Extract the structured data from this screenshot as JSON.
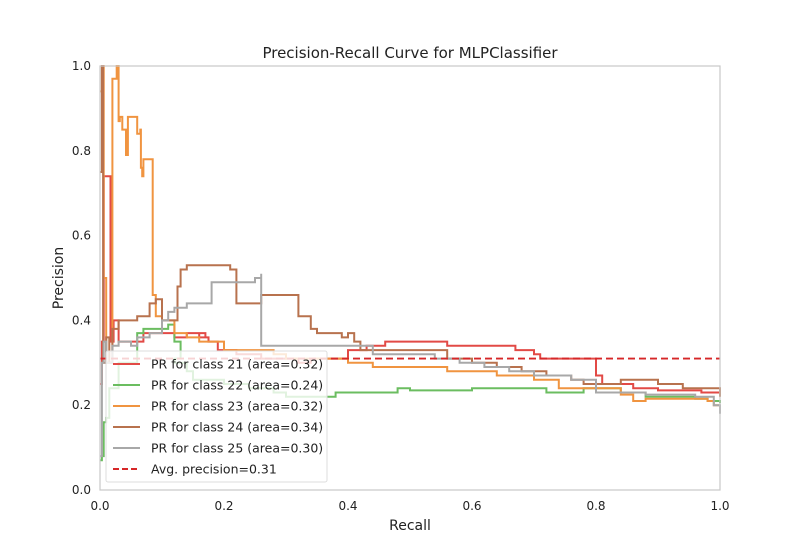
{
  "chart_data": {
    "type": "line",
    "title": "Precision-Recall Curve for MLPClassifier",
    "xlabel": "Recall",
    "ylabel": "Precision",
    "xlim": [
      0,
      1
    ],
    "ylim": [
      0,
      1
    ],
    "xticks": [
      "0.0",
      "0.2",
      "0.4",
      "0.6",
      "0.8",
      "1.0"
    ],
    "yticks": [
      "0.0",
      "0.2",
      "0.4",
      "0.6",
      "0.8",
      "1.0"
    ],
    "grid": false,
    "legend_position": "lower-left",
    "series": [
      {
        "name": "PR for class 21 (area=0.32)",
        "color": "#e24a46",
        "points": [
          [
            0,
            0.25
          ],
          [
            0.003,
            0.35
          ],
          [
            0.006,
            0.74
          ],
          [
            0.017,
            0.74
          ],
          [
            0.017,
            0.35
          ],
          [
            0.022,
            0.4
          ],
          [
            0.03,
            0.4
          ],
          [
            0.03,
            0.35
          ],
          [
            0.05,
            0.35
          ],
          [
            0.07,
            0.37
          ],
          [
            0.1,
            0.37
          ],
          [
            0.12,
            0.36
          ],
          [
            0.14,
            0.37
          ],
          [
            0.16,
            0.36
          ],
          [
            0.17,
            0.37
          ],
          [
            0.16,
            0.36
          ],
          [
            0.175,
            0.35
          ],
          [
            0.19,
            0.33
          ],
          [
            0.2,
            0.33
          ],
          [
            0.22,
            0.32
          ],
          [
            0.26,
            0.31
          ],
          [
            0.3,
            0.31
          ],
          [
            0.32,
            0.3
          ],
          [
            0.34,
            0.31
          ],
          [
            0.4,
            0.33
          ],
          [
            0.43,
            0.34
          ],
          [
            0.46,
            0.35
          ],
          [
            0.5,
            0.35
          ],
          [
            0.54,
            0.35
          ],
          [
            0.56,
            0.34
          ],
          [
            0.64,
            0.34
          ],
          [
            0.67,
            0.33
          ],
          [
            0.7,
            0.32
          ],
          [
            0.71,
            0.31
          ],
          [
            0.76,
            0.31
          ],
          [
            0.8,
            0.27
          ],
          [
            0.81,
            0.25
          ],
          [
            0.82,
            0.25
          ],
          [
            0.83,
            0.25
          ],
          [
            0.86,
            0.24
          ],
          [
            0.9,
            0.235
          ],
          [
            0.96,
            0.235
          ],
          [
            0.97,
            0.23
          ],
          [
            1.0,
            0.23
          ]
        ]
      },
      {
        "name": "PR for class 22 (area=0.24)",
        "color": "#6bbd60",
        "points": [
          [
            0,
            0.07
          ],
          [
            0.003,
            0.08
          ],
          [
            0.006,
            0.16
          ],
          [
            0.01,
            0.17
          ],
          [
            0.015,
            0.24
          ],
          [
            0.03,
            0.3
          ],
          [
            0.05,
            0.3
          ],
          [
            0.06,
            0.37
          ],
          [
            0.07,
            0.38
          ],
          [
            0.1,
            0.38
          ],
          [
            0.11,
            0.39
          ],
          [
            0.12,
            0.39
          ],
          [
            0.12,
            0.38
          ],
          [
            0.12,
            0.36
          ],
          [
            0.12,
            0.35
          ],
          [
            0.13,
            0.31
          ],
          [
            0.12,
            0.3
          ],
          [
            0.14,
            0.28
          ],
          [
            0.15,
            0.26
          ],
          [
            0.2,
            0.25
          ],
          [
            0.24,
            0.24
          ],
          [
            0.28,
            0.23
          ],
          [
            0.3,
            0.22
          ],
          [
            0.36,
            0.22
          ],
          [
            0.38,
            0.23
          ],
          [
            0.42,
            0.23
          ],
          [
            0.48,
            0.24
          ],
          [
            0.5,
            0.235
          ],
          [
            0.56,
            0.235
          ],
          [
            0.6,
            0.24
          ],
          [
            0.66,
            0.24
          ],
          [
            0.72,
            0.23
          ],
          [
            0.74,
            0.23
          ],
          [
            0.78,
            0.24
          ],
          [
            0.8,
            0.24
          ],
          [
            0.84,
            0.23
          ],
          [
            0.88,
            0.22
          ],
          [
            0.92,
            0.22
          ],
          [
            0.96,
            0.215
          ],
          [
            0.98,
            0.21
          ],
          [
            1.0,
            0.205
          ]
        ]
      },
      {
        "name": "PR for class 23 (area=0.32)",
        "color": "#f09440",
        "points": [
          [
            0,
            0.94
          ],
          [
            0.003,
            1.0
          ],
          [
            0.006,
            0.5
          ],
          [
            0.01,
            0.3
          ],
          [
            0.015,
            0.3
          ],
          [
            0.02,
            0.97
          ],
          [
            0.027,
            1.0
          ],
          [
            0.03,
            0.87
          ],
          [
            0.032,
            0.88
          ],
          [
            0.036,
            0.85
          ],
          [
            0.042,
            0.79
          ],
          [
            0.045,
            0.88
          ],
          [
            0.06,
            0.86
          ],
          [
            0.06,
            0.84
          ],
          [
            0.065,
            0.85
          ],
          [
            0.066,
            0.76
          ],
          [
            0.068,
            0.74
          ],
          [
            0.07,
            0.78
          ],
          [
            0.085,
            0.78
          ],
          [
            0.085,
            0.46
          ],
          [
            0.09,
            0.41
          ],
          [
            0.1,
            0.4
          ],
          [
            0.12,
            0.38
          ],
          [
            0.12,
            0.37
          ],
          [
            0.14,
            0.36
          ],
          [
            0.16,
            0.35
          ],
          [
            0.18,
            0.35
          ],
          [
            0.2,
            0.33
          ],
          [
            0.24,
            0.33
          ],
          [
            0.28,
            0.32
          ],
          [
            0.3,
            0.31
          ],
          [
            0.36,
            0.31
          ],
          [
            0.4,
            0.3
          ],
          [
            0.44,
            0.29
          ],
          [
            0.5,
            0.29
          ],
          [
            0.56,
            0.28
          ],
          [
            0.6,
            0.28
          ],
          [
            0.64,
            0.27
          ],
          [
            0.7,
            0.26
          ],
          [
            0.74,
            0.24
          ],
          [
            0.78,
            0.24
          ],
          [
            0.8,
            0.24
          ],
          [
            0.82,
            0.24
          ],
          [
            0.84,
            0.225
          ],
          [
            0.86,
            0.21
          ],
          [
            0.88,
            0.215
          ],
          [
            0.9,
            0.215
          ],
          [
            0.94,
            0.215
          ],
          [
            0.98,
            0.21
          ],
          [
            0.99,
            0.2
          ],
          [
            1.0,
            0.2
          ]
        ]
      },
      {
        "name": "PR for class 24 (area=0.34)",
        "color": "#b8724e",
        "points": [
          [
            0,
            0.75
          ],
          [
            0.003,
            1.0
          ],
          [
            0.005,
            0.3
          ],
          [
            0.01,
            0.36
          ],
          [
            0.015,
            0.3
          ],
          [
            0.02,
            0.38
          ],
          [
            0.03,
            0.4
          ],
          [
            0.05,
            0.4
          ],
          [
            0.06,
            0.41
          ],
          [
            0.08,
            0.42
          ],
          [
            0.08,
            0.44
          ],
          [
            0.09,
            0.45
          ],
          [
            0.1,
            0.45
          ],
          [
            0.1,
            0.4
          ],
          [
            0.12,
            0.4
          ],
          [
            0.125,
            0.48
          ],
          [
            0.13,
            0.52
          ],
          [
            0.14,
            0.53
          ],
          [
            0.2,
            0.53
          ],
          [
            0.21,
            0.52
          ],
          [
            0.22,
            0.52
          ],
          [
            0.22,
            0.44
          ],
          [
            0.26,
            0.44
          ],
          [
            0.26,
            0.46
          ],
          [
            0.3,
            0.46
          ],
          [
            0.32,
            0.41
          ],
          [
            0.34,
            0.38
          ],
          [
            0.35,
            0.37
          ],
          [
            0.38,
            0.37
          ],
          [
            0.39,
            0.36
          ],
          [
            0.4,
            0.37
          ],
          [
            0.41,
            0.35
          ],
          [
            0.42,
            0.33
          ],
          [
            0.44,
            0.33
          ],
          [
            0.46,
            0.33
          ],
          [
            0.5,
            0.33
          ],
          [
            0.56,
            0.31
          ],
          [
            0.6,
            0.3
          ],
          [
            0.64,
            0.29
          ],
          [
            0.68,
            0.28
          ],
          [
            0.72,
            0.27
          ],
          [
            0.76,
            0.26
          ],
          [
            0.78,
            0.25
          ],
          [
            0.82,
            0.25
          ],
          [
            0.84,
            0.26
          ],
          [
            0.88,
            0.26
          ],
          [
            0.9,
            0.25
          ],
          [
            0.94,
            0.24
          ],
          [
            0.98,
            0.24
          ],
          [
            1.0,
            0.22
          ]
        ]
      },
      {
        "name": "PR for class 25 (area=0.30)",
        "color": "#a8a8a8",
        "points": [
          [
            0,
            0.08
          ],
          [
            0.003,
            0.3
          ],
          [
            0.006,
            0.35
          ],
          [
            0.01,
            0.3
          ],
          [
            0.02,
            0.34
          ],
          [
            0.03,
            0.35
          ],
          [
            0.05,
            0.34
          ],
          [
            0.06,
            0.36
          ],
          [
            0.08,
            0.37
          ],
          [
            0.1,
            0.38
          ],
          [
            0.1,
            0.4
          ],
          [
            0.11,
            0.42
          ],
          [
            0.12,
            0.43
          ],
          [
            0.14,
            0.44
          ],
          [
            0.16,
            0.44
          ],
          [
            0.18,
            0.45
          ],
          [
            0.18,
            0.49
          ],
          [
            0.21,
            0.49
          ],
          [
            0.22,
            0.49
          ],
          [
            0.25,
            0.5
          ],
          [
            0.26,
            0.51
          ],
          [
            0.26,
            0.34
          ],
          [
            0.3,
            0.34
          ],
          [
            0.34,
            0.34
          ],
          [
            0.36,
            0.34
          ],
          [
            0.4,
            0.34
          ],
          [
            0.44,
            0.32
          ],
          [
            0.48,
            0.32
          ],
          [
            0.52,
            0.32
          ],
          [
            0.54,
            0.31
          ],
          [
            0.58,
            0.3
          ],
          [
            0.62,
            0.29
          ],
          [
            0.66,
            0.28
          ],
          [
            0.7,
            0.27
          ],
          [
            0.72,
            0.27
          ],
          [
            0.74,
            0.27
          ],
          [
            0.76,
            0.26
          ],
          [
            0.8,
            0.23
          ],
          [
            0.84,
            0.23
          ],
          [
            0.88,
            0.225
          ],
          [
            0.92,
            0.225
          ],
          [
            0.96,
            0.22
          ],
          [
            0.99,
            0.2
          ],
          [
            1.0,
            0.18
          ]
        ]
      }
    ],
    "reference_line": {
      "name": "Avg. precision=0.31",
      "value": 0.31,
      "color": "#d62728",
      "style": "dashed"
    }
  }
}
